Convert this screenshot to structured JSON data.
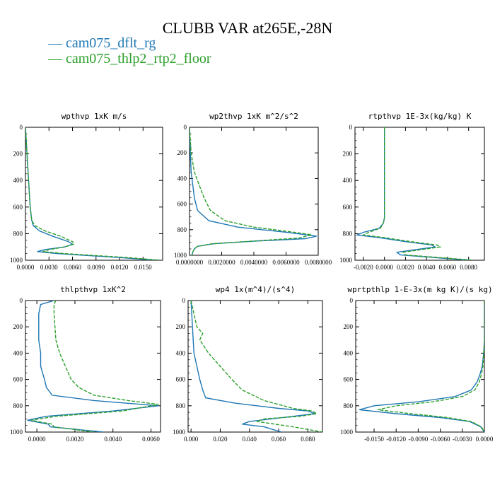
{
  "figure": {
    "title": "CLUBB VAR at265E,-28N",
    "legend": [
      {
        "label": "— cam075_dflt_rg",
        "color": "#1f77b4"
      },
      {
        "label": "— cam075_thlp2_rtp2_floor",
        "color": "#2ca02c"
      }
    ]
  },
  "chart_data": [
    {
      "type": "line",
      "title": "wpthvp  1xK m/s",
      "xlim": [
        0.0,
        0.0175
      ],
      "ylim": [
        1000,
        0
      ],
      "xticks": [
        0.0,
        0.003,
        0.006,
        0.009,
        0.012,
        0.015
      ],
      "xtick_labels": [
        "0.0000",
        "0.0030",
        "0.0060",
        "0.0090",
        "0.0120",
        "0.0150"
      ],
      "yticks": [
        0,
        200,
        400,
        600,
        800,
        1000
      ],
      "series": [
        {
          "name": "cam075_dflt_rg",
          "color": "#1f77b4",
          "dashed": false,
          "x": [
            0,
            0.0002,
            0.0004,
            0.0006,
            0.0008,
            0.001,
            0.0018,
            0.0035,
            0.0055,
            0.006,
            0.005,
            0.0025,
            0.0015,
            0.004,
            0.008,
            0.012,
            0.0165
          ],
          "y": [
            0,
            200,
            400,
            600,
            700,
            740,
            780,
            820,
            860,
            880,
            900,
            920,
            935,
            950,
            965,
            980,
            1000
          ]
        },
        {
          "name": "cam075_thlp2_rtp2_floor",
          "color": "#2ca02c",
          "dashed": true,
          "x": [
            0,
            0.0002,
            0.0004,
            0.0006,
            0.0008,
            0.0012,
            0.0025,
            0.0045,
            0.006,
            0.0062,
            0.005,
            0.003,
            0.0022,
            0.005,
            0.009,
            0.013,
            0.0172
          ],
          "y": [
            0,
            200,
            400,
            600,
            700,
            740,
            780,
            820,
            860,
            880,
            900,
            920,
            935,
            950,
            965,
            980,
            1000
          ]
        }
      ]
    },
    {
      "type": "line",
      "title": "wp2thvp  1xK m^2/s^2",
      "xlim": [
        0.0,
        0.008
      ],
      "ylim": [
        1000,
        0
      ],
      "xticks": [
        0.0,
        0.002,
        0.004,
        0.006,
        0.008
      ],
      "xtick_labels": [
        "0.0000000",
        "0.0020000",
        "0.0040000",
        "0.0060000",
        "0.0080000"
      ],
      "yticks": [
        0,
        200,
        400,
        600,
        800,
        1000
      ],
      "series": [
        {
          "name": "cam075_dflt_rg",
          "color": "#1f77b4",
          "dashed": false,
          "x": [
            0,
            5e-05,
            0.0001,
            0.0002,
            0.0003,
            0.0005,
            0.0012,
            0.003,
            0.006,
            0.0079,
            0.0072,
            0.004,
            0.0015,
            0.0005,
            0.0003,
            0.0002,
            0.00015
          ],
          "y": [
            0,
            200,
            350,
            450,
            550,
            650,
            730,
            780,
            820,
            850,
            870,
            890,
            910,
            930,
            950,
            975,
            1000
          ]
        },
        {
          "name": "cam075_thlp2_rtp2_floor",
          "color": "#2ca02c",
          "dashed": true,
          "x": [
            0,
            0.0001,
            0.0003,
            0.0006,
            0.0009,
            0.0013,
            0.0022,
            0.004,
            0.0065,
            0.0076,
            0.0068,
            0.0038,
            0.0014,
            0.0005,
            0.0003,
            0.0002,
            0.00015
          ],
          "y": [
            0,
            200,
            350,
            450,
            550,
            650,
            730,
            780,
            820,
            840,
            865,
            890,
            910,
            930,
            950,
            975,
            1000
          ]
        }
      ]
    },
    {
      "type": "line",
      "title": "rtpthvp  1E-3x(kg/kg) K",
      "xlim": [
        -0.0028,
        0.0095
      ],
      "ylim": [
        1000,
        0
      ],
      "xticks": [
        -0.002,
        0.0,
        0.002,
        0.004,
        0.006,
        0.008
      ],
      "xtick_labels": [
        "-0.0020",
        "0.0000",
        "0.0020",
        "0.0040",
        "0.0060",
        "0.0080"
      ],
      "yticks": [
        0,
        200,
        400,
        600,
        800,
        1000
      ],
      "series": [
        {
          "name": "cam075_dflt_rg",
          "color": "#1f77b4",
          "dashed": false,
          "x": [
            0,
            0,
            0,
            0,
            0,
            -0.0001,
            -0.0005,
            -0.002,
            -0.0026,
            -0.0005,
            0.002,
            0.0045,
            0.0048,
            0.003,
            0.0012,
            0.0015,
            0.008
          ],
          "y": [
            0,
            200,
            400,
            600,
            680,
            720,
            760,
            790,
            810,
            830,
            860,
            885,
            900,
            920,
            940,
            960,
            1000
          ]
        },
        {
          "name": "cam075_thlp2_rtp2_floor",
          "color": "#2ca02c",
          "dashed": true,
          "x": [
            0,
            0,
            0,
            0,
            0,
            -0.0001,
            -0.0004,
            -0.0015,
            -0.002,
            0.0,
            0.0025,
            0.005,
            0.0053,
            0.0035,
            0.0018,
            0.002,
            0.0085
          ],
          "y": [
            0,
            200,
            400,
            600,
            680,
            720,
            760,
            790,
            810,
            830,
            860,
            885,
            900,
            920,
            940,
            960,
            1000
          ]
        }
      ]
    },
    {
      "type": "line",
      "title": "thlpthvp  1xK^2",
      "xlim": [
        -0.0006,
        0.0065
      ],
      "ylim": [
        1000,
        0
      ],
      "xticks": [
        0.0,
        0.002,
        0.004,
        0.006
      ],
      "xtick_labels": [
        "0.0000",
        "0.0020",
        "0.0040",
        "0.0060"
      ],
      "yticks": [
        0,
        200,
        400,
        600,
        800,
        1000
      ],
      "series": [
        {
          "name": "cam075_dflt_rg",
          "color": "#1f77b4",
          "dashed": false,
          "x": [
            0.0009,
            0.0002,
            0.0001,
            0.0001,
            0.0002,
            0.0002,
            0.0004,
            0.0005,
            0.0008,
            0.003,
            0.0064,
            0.004,
            0.0005,
            -0.0005,
            0.0006,
            0.0007,
            0.0035
          ],
          "y": [
            0,
            30,
            100,
            300,
            400,
            500,
            600,
            660,
            720,
            760,
            800,
            840,
            880,
            910,
            940,
            960,
            1000
          ]
        },
        {
          "name": "cam075_thlp2_rtp2_floor",
          "color": "#2ca02c",
          "dashed": true,
          "x": [
            0.001,
            0.0009,
            0.0009,
            0.001,
            0.0012,
            0.0015,
            0.0018,
            0.0022,
            0.003,
            0.0048,
            0.0064,
            0.0045,
            0.001,
            -0.0003,
            0.0008,
            0.0009,
            0.003
          ],
          "y": [
            0,
            30,
            100,
            300,
            400,
            500,
            600,
            660,
            720,
            760,
            790,
            840,
            880,
            910,
            940,
            960,
            1000
          ]
        }
      ]
    },
    {
      "type": "line",
      "title": "wp4  1x(m^4)/(s^4)",
      "xlim": [
        -0.002,
        0.09
      ],
      "ylim": [
        1000,
        0
      ],
      "xticks": [
        0.0,
        0.02,
        0.04,
        0.06,
        0.08
      ],
      "xtick_labels": [
        "0.000",
        "0.020",
        "0.040",
        "0.060",
        "0.080"
      ],
      "yticks": [
        0,
        200,
        400,
        600,
        800,
        1000
      ],
      "series": [
        {
          "name": "cam075_dflt_rg",
          "color": "#1f77b4",
          "dashed": false,
          "x": [
            0,
            0.001,
            0.0015,
            0.002,
            0.004,
            0.006,
            0.008,
            0.01,
            0.03,
            0.06,
            0.08,
            0.085,
            0.07,
            0.04,
            0.035,
            0.05,
            0.062
          ],
          "y": [
            0,
            200,
            300,
            400,
            500,
            600,
            680,
            740,
            780,
            820,
            840,
            860,
            880,
            920,
            940,
            960,
            1000
          ]
        },
        {
          "name": "cam075_thlp2_rtp2_floor",
          "color": "#2ca02c",
          "dashed": true,
          "x": [
            0,
            0.004,
            0.008,
            0.006,
            0.012,
            0.02,
            0.028,
            0.035,
            0.05,
            0.07,
            0.083,
            0.086,
            0.075,
            0.05,
            0.045,
            0.07,
            0.09
          ],
          "y": [
            0,
            200,
            250,
            300,
            400,
            500,
            600,
            680,
            760,
            820,
            840,
            860,
            880,
            900,
            920,
            960,
            1000
          ]
        }
      ]
    },
    {
      "type": "line",
      "title": "wprtpthlp  1-E-3x(m kg K)/(s kg)",
      "xlim": [
        -0.0175,
        0.0
      ],
      "ylim": [
        1000,
        0
      ],
      "xticks": [
        -0.015,
        -0.012,
        -0.009,
        -0.006,
        -0.003,
        0.0
      ],
      "xtick_labels": [
        "-0.0150",
        "-0.0120",
        "-0.0090",
        "-0.0060",
        "-0.0030",
        "0.0000"
      ],
      "yticks": [
        0,
        200,
        400,
        600,
        800,
        1000
      ],
      "series": [
        {
          "name": "cam075_dflt_rg",
          "color": "#1f77b4",
          "dashed": false,
          "x": [
            0,
            0,
            -0.0001,
            -0.0003,
            -0.0006,
            -0.001,
            -0.0018,
            -0.004,
            -0.009,
            -0.015,
            -0.017,
            -0.012,
            -0.006,
            -0.002,
            -0.0005,
            0
          ],
          "y": [
            0,
            300,
            400,
            500,
            560,
            620,
            680,
            730,
            770,
            800,
            830,
            860,
            890,
            920,
            960,
            1000
          ]
        },
        {
          "name": "cam075_thlp2_rtp2_floor",
          "color": "#2ca02c",
          "dashed": true,
          "x": [
            0,
            0,
            -0.0001,
            -0.0002,
            -0.0004,
            -0.0007,
            -0.0013,
            -0.003,
            -0.007,
            -0.012,
            -0.0145,
            -0.01,
            -0.005,
            -0.0018,
            -0.0004,
            0
          ],
          "y": [
            0,
            300,
            400,
            500,
            560,
            620,
            680,
            730,
            770,
            800,
            830,
            860,
            890,
            920,
            960,
            1000
          ]
        }
      ]
    }
  ]
}
